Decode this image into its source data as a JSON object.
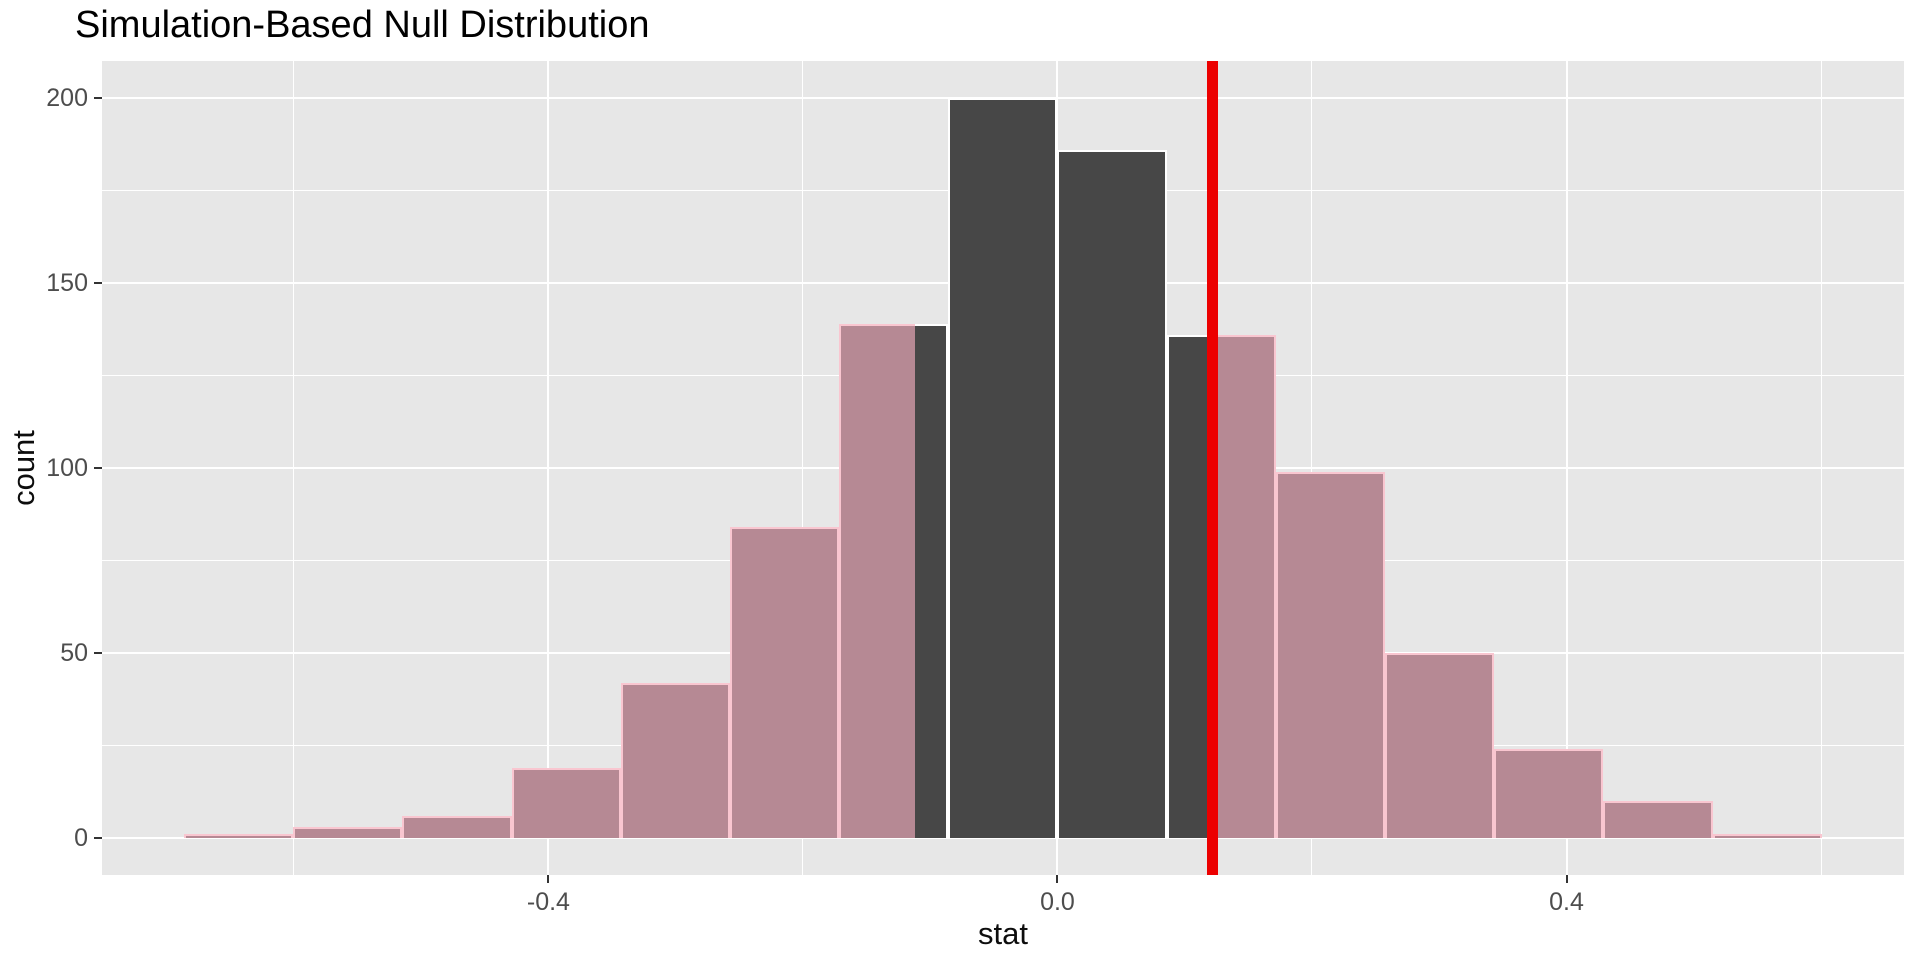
{
  "title": "Simulation-Based Null Distribution",
  "x_axis": {
    "label": "stat",
    "ticks": [
      "-0.4",
      "0.0",
      "0.4"
    ],
    "tick_values": [
      -0.4,
      0.0,
      0.4
    ],
    "minor_values": [
      -0.6,
      -0.2,
      0.2,
      0.6
    ],
    "range": [
      -0.7508,
      0.6652
    ]
  },
  "y_axis": {
    "label": "count",
    "ticks": [
      "0",
      "50",
      "100",
      "150",
      "200"
    ],
    "tick_values": [
      0,
      50,
      100,
      150,
      200
    ],
    "minor_values": [
      25,
      75,
      125,
      175
    ],
    "range": [
      -10,
      210
    ]
  },
  "chart_data": {
    "type": "bar",
    "subtype": "histogram-null-distribution",
    "title": "Simulation-Based Null Distribution",
    "xlabel": "stat",
    "ylabel": "count",
    "x_range": [
      -0.7508,
      0.6652
    ],
    "y_range": [
      -10,
      210
    ],
    "grid": "on",
    "bin_width": 0.0858,
    "bins": [
      {
        "x0": -0.6864,
        "x1": -0.6006,
        "count": 1
      },
      {
        "x0": -0.6006,
        "x1": -0.5148,
        "count": 3
      },
      {
        "x0": -0.5148,
        "x1": -0.429,
        "count": 6
      },
      {
        "x0": -0.429,
        "x1": -0.3432,
        "count": 19
      },
      {
        "x0": -0.3432,
        "x1": -0.2574,
        "count": 42
      },
      {
        "x0": -0.2574,
        "x1": -0.1716,
        "count": 84
      },
      {
        "x0": -0.1716,
        "x1": -0.0858,
        "count": 139
      },
      {
        "x0": -0.0858,
        "x1": 0.0,
        "count": 200
      },
      {
        "x0": 0.0,
        "x1": 0.0858,
        "count": 186
      },
      {
        "x0": 0.0858,
        "x1": 0.1716,
        "count": 136
      },
      {
        "x0": 0.1716,
        "x1": 0.2574,
        "count": 99
      },
      {
        "x0": 0.2574,
        "x1": 0.3432,
        "count": 50
      },
      {
        "x0": 0.3432,
        "x1": 0.429,
        "count": 24
      },
      {
        "x0": 0.429,
        "x1": 0.5148,
        "count": 10
      },
      {
        "x0": 0.5148,
        "x1": 0.6006,
        "count": 1
      }
    ],
    "total_replicates": 1000,
    "observed_stat": 0.122,
    "shade": {
      "direction": "two-sided",
      "left_boundary": -0.112,
      "right_boundary": 0.122
    }
  },
  "colors": {
    "panel_bg": "#E7E7E7",
    "grid": "#FFFFFF",
    "bar_fill": "#474747",
    "bar_border": "#FFFFFF",
    "shaded_fill": "#B68994",
    "shaded_border": "#F9C6D0",
    "obs_line": "#EC0000",
    "tick_text": "#4D4D4D",
    "tick_mark": "#333333",
    "title_text": "#000000"
  }
}
